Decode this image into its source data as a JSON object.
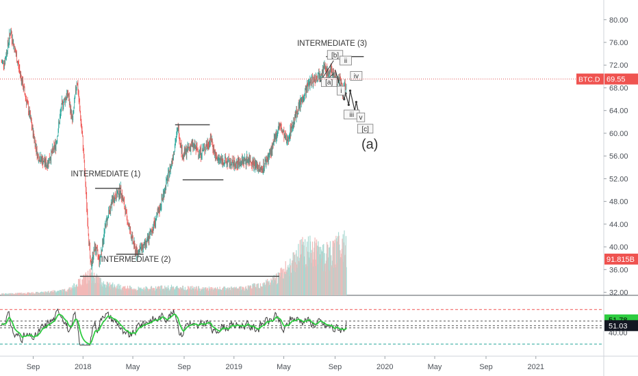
{
  "chart_data": {
    "type": "candlestick",
    "symbol": "BTC.D",
    "price_axis": {
      "ticks": [
        "80.00",
        "76.00",
        "72.00",
        "68.00",
        "64.00",
        "60.00",
        "56.00",
        "52.00",
        "48.00",
        "44.00",
        "40.00",
        "36.00",
        "32.00"
      ],
      "range": [
        30.5,
        82.5
      ]
    },
    "current_price_label": "69.55",
    "current_price_value": 69.55,
    "volume_label": "91.815B",
    "time_axis": [
      "Sep",
      "2018",
      "May",
      "Sep",
      "2019",
      "May",
      "Sep",
      "2020",
      "May",
      "Sep",
      "2021"
    ],
    "price_path": [
      [
        2017.48,
        72.5
      ],
      [
        2017.52,
        78.0
      ],
      [
        2017.58,
        71.0
      ],
      [
        2017.64,
        64.0
      ],
      [
        2017.7,
        56.0
      ],
      [
        2017.76,
        54.5
      ],
      [
        2017.82,
        58.0
      ],
      [
        2017.86,
        65.0
      ],
      [
        2017.9,
        67.0
      ],
      [
        2017.93,
        62.0
      ],
      [
        2017.96,
        69.5
      ],
      [
        2018.0,
        58.0
      ],
      [
        2018.03,
        45.0
      ],
      [
        2018.05,
        36.5
      ],
      [
        2018.08,
        40.0
      ],
      [
        2018.11,
        37.5
      ],
      [
        2018.15,
        44.0
      ],
      [
        2018.2,
        48.5
      ],
      [
        2018.25,
        50.0
      ],
      [
        2018.3,
        44.0
      ],
      [
        2018.35,
        39.0
      ],
      [
        2018.42,
        40.5
      ],
      [
        2018.5,
        46.0
      ],
      [
        2018.58,
        54.0
      ],
      [
        2018.63,
        61.0
      ],
      [
        2018.66,
        56.0
      ],
      [
        2018.72,
        58.0
      ],
      [
        2018.78,
        56.5
      ],
      [
        2018.85,
        59.0
      ],
      [
        2018.88,
        55.5
      ],
      [
        2018.95,
        55.0
      ],
      [
        2019.0,
        54.5
      ],
      [
        2019.1,
        55.5
      ],
      [
        2019.18,
        53.5
      ],
      [
        2019.25,
        57.0
      ],
      [
        2019.3,
        61.5
      ],
      [
        2019.35,
        58.5
      ],
      [
        2019.42,
        64.0
      ],
      [
        2019.5,
        69.0
      ],
      [
        2019.55,
        70.0
      ],
      [
        2019.6,
        71.5
      ],
      [
        2019.62,
        70.5
      ],
      [
        2019.65,
        71.0
      ],
      [
        2019.68,
        69.0
      ],
      [
        2019.7,
        70.0
      ],
      [
        2019.72,
        67.5
      ],
      [
        2019.74,
        68.5
      ]
    ],
    "volume_bars": [
      [
        2017.5,
        0.3
      ],
      [
        2017.7,
        0.5
      ],
      [
        2017.9,
        1.0
      ],
      [
        2017.98,
        2.5
      ],
      [
        2018.05,
        4.0
      ],
      [
        2018.15,
        2.0
      ],
      [
        2018.35,
        1.2
      ],
      [
        2018.6,
        1.5
      ],
      [
        2018.85,
        1.2
      ],
      [
        2019.05,
        1.3
      ],
      [
        2019.25,
        2.5
      ],
      [
        2019.35,
        5.0
      ],
      [
        2019.45,
        9.0
      ],
      [
        2019.55,
        8.0
      ],
      [
        2019.65,
        7.5
      ],
      [
        2019.72,
        10.5
      ],
      [
        2019.75,
        8.0
      ]
    ],
    "elliott_wave": {
      "projection_path": [
        [
          2019.67,
          71.2
        ],
        [
          2019.73,
          66.0
        ],
        [
          2019.74,
          67.0
        ],
        [
          2019.76,
          65.0
        ],
        [
          2019.77,
          67.5
        ],
        [
          2019.8,
          64.0
        ],
        [
          2019.81,
          65.5
        ],
        [
          2019.83,
          63.0
        ]
      ],
      "labels": [
        {
          "text": "INTERMEDIATE (3)",
          "t": 2019.65,
          "p": 75.5
        },
        {
          "text": "INTERMEDIATE (1)",
          "t": 2018.15,
          "p": 52.5
        },
        {
          "text": "INTERMEDIATE (2)",
          "t": 2018.35,
          "p": 37.5
        },
        {
          "text": "(a)",
          "t": 2019.9,
          "p": 58.0
        },
        {
          "text": "[b]",
          "t": 2019.67,
          "p": 73.5
        },
        {
          "text": "[a]",
          "t": 2019.63,
          "p": 68.7
        },
        {
          "text": "[c]",
          "t": 2019.87,
          "p": 60.5
        },
        {
          "text": "i",
          "t": 2019.71,
          "p": 67.2
        },
        {
          "text": "ii",
          "t": 2019.74,
          "p": 72.5
        },
        {
          "text": "iii",
          "t": 2019.78,
          "p": 63.0
        },
        {
          "text": "iv",
          "t": 2019.81,
          "p": 69.8
        },
        {
          "text": "v",
          "t": 2019.84,
          "p": 62.5
        }
      ]
    },
    "rsi": {
      "levels": [
        "51.78",
        "51.03",
        "40.00"
      ],
      "overbought": 80,
      "oversold": 20
    }
  }
}
